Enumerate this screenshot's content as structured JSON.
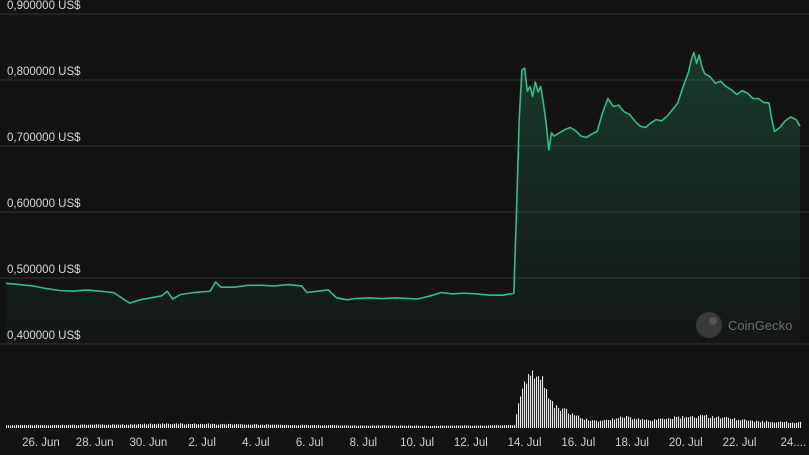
{
  "chart_data": {
    "type": "area",
    "title": "",
    "xlabel": "",
    "ylabel": "",
    "ylim": [
      0.4,
      0.9
    ],
    "y_ticks": [
      "0,900000 US$",
      "0,800000 US$",
      "0,700000 US$",
      "0,600000 US$",
      "0,500000 US$",
      "0,400000 US$"
    ],
    "y_tick_values": [
      0.9,
      0.8,
      0.7,
      0.6,
      0.5,
      0.4
    ],
    "x_ticks": [
      "26. Jun",
      "28. Jun",
      "30. Jun",
      "2. Jul",
      "4. Jul",
      "6. Jul",
      "8. Jul",
      "10. Jul",
      "12. Jul",
      "14. Jul",
      "16. Jul",
      "18. Jul",
      "20. Jul",
      "22. Jul",
      "24...."
    ],
    "x_tick_days": [
      1.3,
      3.3,
      5.3,
      7.3,
      9.3,
      11.3,
      13.3,
      15.3,
      17.3,
      19.3,
      21.3,
      23.3,
      25.3,
      27.3,
      29.3
    ],
    "x_range_days": [
      0,
      29.55
    ],
    "grid": true,
    "colors": {
      "line": "#2fbf83",
      "volume": "#e8e8e8",
      "background": "#131313"
    },
    "series": [
      {
        "values": [
          [
            0,
            0.492
          ],
          [
            0.5,
            0.49
          ],
          [
            1.0,
            0.488
          ],
          [
            1.5,
            0.484
          ],
          [
            2.0,
            0.481
          ],
          [
            2.5,
            0.48
          ],
          [
            3.0,
            0.482
          ],
          [
            3.5,
            0.48
          ],
          [
            4.0,
            0.478
          ],
          [
            4.3,
            0.47
          ],
          [
            4.6,
            0.462
          ],
          [
            5.0,
            0.467
          ],
          [
            5.4,
            0.47
          ],
          [
            5.8,
            0.473
          ],
          [
            6.0,
            0.48
          ],
          [
            6.2,
            0.468
          ],
          [
            6.5,
            0.475
          ],
          [
            7.0,
            0.478
          ],
          [
            7.6,
            0.48
          ],
          [
            7.8,
            0.494
          ],
          [
            8.0,
            0.486
          ],
          [
            8.5,
            0.486
          ],
          [
            9.0,
            0.489
          ],
          [
            9.5,
            0.489
          ],
          [
            10.0,
            0.488
          ],
          [
            10.5,
            0.49
          ],
          [
            11.0,
            0.488
          ],
          [
            11.2,
            0.478
          ],
          [
            11.6,
            0.48
          ],
          [
            12.0,
            0.482
          ],
          [
            12.3,
            0.47
          ],
          [
            12.7,
            0.467
          ],
          [
            13.0,
            0.469
          ],
          [
            13.5,
            0.47
          ],
          [
            14.0,
            0.469
          ],
          [
            14.5,
            0.47
          ],
          [
            15.0,
            0.469
          ],
          [
            15.3,
            0.468
          ],
          [
            15.8,
            0.473
          ],
          [
            16.2,
            0.478
          ],
          [
            16.6,
            0.476
          ],
          [
            17.0,
            0.477
          ],
          [
            17.5,
            0.476
          ],
          [
            18.0,
            0.474
          ],
          [
            18.5,
            0.474
          ],
          [
            18.9,
            0.477
          ],
          [
            19.0,
            0.6
          ],
          [
            19.1,
            0.74
          ],
          [
            19.2,
            0.815
          ],
          [
            19.3,
            0.818
          ],
          [
            19.4,
            0.783
          ],
          [
            19.5,
            0.79
          ],
          [
            19.6,
            0.775
          ],
          [
            19.7,
            0.797
          ],
          [
            19.8,
            0.782
          ],
          [
            19.9,
            0.79
          ],
          [
            20.0,
            0.765
          ],
          [
            20.1,
            0.735
          ],
          [
            20.2,
            0.694
          ],
          [
            20.3,
            0.72
          ],
          [
            20.4,
            0.715
          ],
          [
            20.6,
            0.72
          ],
          [
            20.8,
            0.725
          ],
          [
            21.0,
            0.728
          ],
          [
            21.2,
            0.723
          ],
          [
            21.4,
            0.715
          ],
          [
            21.6,
            0.713
          ],
          [
            21.8,
            0.718
          ],
          [
            22.0,
            0.722
          ],
          [
            22.2,
            0.75
          ],
          [
            22.4,
            0.772
          ],
          [
            22.6,
            0.76
          ],
          [
            22.8,
            0.762
          ],
          [
            23.0,
            0.752
          ],
          [
            23.2,
            0.748
          ],
          [
            23.4,
            0.738
          ],
          [
            23.6,
            0.73
          ],
          [
            23.8,
            0.728
          ],
          [
            24.0,
            0.735
          ],
          [
            24.2,
            0.74
          ],
          [
            24.4,
            0.738
          ],
          [
            24.6,
            0.745
          ],
          [
            24.8,
            0.755
          ],
          [
            25.0,
            0.765
          ],
          [
            25.2,
            0.79
          ],
          [
            25.4,
            0.812
          ],
          [
            25.5,
            0.83
          ],
          [
            25.6,
            0.842
          ],
          [
            25.7,
            0.825
          ],
          [
            25.8,
            0.838
          ],
          [
            25.9,
            0.82
          ],
          [
            26.0,
            0.81
          ],
          [
            26.2,
            0.805
          ],
          [
            26.4,
            0.795
          ],
          [
            26.6,
            0.798
          ],
          [
            26.8,
            0.79
          ],
          [
            27.0,
            0.785
          ],
          [
            27.2,
            0.778
          ],
          [
            27.4,
            0.784
          ],
          [
            27.6,
            0.78
          ],
          [
            27.8,
            0.772
          ],
          [
            28.0,
            0.772
          ],
          [
            28.2,
            0.766
          ],
          [
            28.4,
            0.765
          ],
          [
            28.5,
            0.74
          ],
          [
            28.6,
            0.722
          ],
          [
            28.8,
            0.728
          ],
          [
            29.0,
            0.738
          ],
          [
            29.2,
            0.744
          ],
          [
            29.4,
            0.74
          ],
          [
            29.55,
            0.73
          ]
        ]
      }
    ],
    "volume_envelope": [
      [
        0,
        0.05
      ],
      [
        4.0,
        0.06
      ],
      [
        6.0,
        0.08
      ],
      [
        8.0,
        0.07
      ],
      [
        12.0,
        0.05
      ],
      [
        16.0,
        0.04
      ],
      [
        18.9,
        0.05
      ],
      [
        19.0,
        0.3
      ],
      [
        19.2,
        0.75
      ],
      [
        19.5,
        0.92
      ],
      [
        19.8,
        1.0
      ],
      [
        20.0,
        0.8
      ],
      [
        20.3,
        0.45
      ],
      [
        20.8,
        0.32
      ],
      [
        21.5,
        0.16
      ],
      [
        22.0,
        0.12
      ],
      [
        23.0,
        0.2
      ],
      [
        24.0,
        0.14
      ],
      [
        25.0,
        0.2
      ],
      [
        26.0,
        0.22
      ],
      [
        27.0,
        0.17
      ],
      [
        28.0,
        0.12
      ],
      [
        29.55,
        0.1
      ]
    ]
  },
  "watermark": {
    "text": "CoinGecko",
    "icon": "coingecko-logo-icon"
  }
}
